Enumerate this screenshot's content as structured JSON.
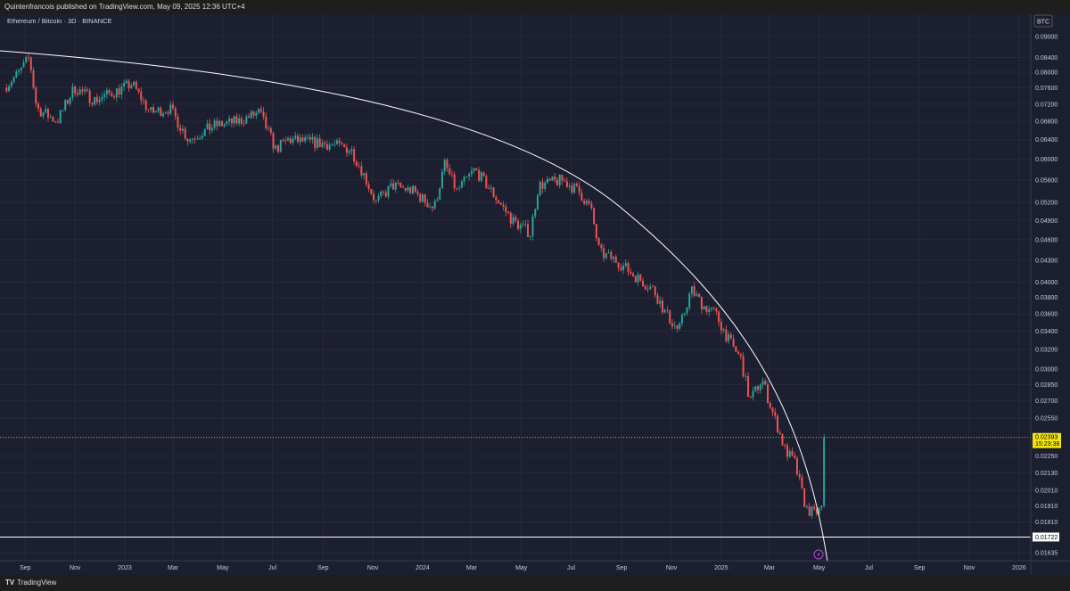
{
  "header": {
    "published": "Quintenfrancois published on TradingView.com, May 09, 2025 12:36 UTC+4"
  },
  "footer": {
    "logo": "TV",
    "brand": "TradingView"
  },
  "chart_data": {
    "type": "candlestick",
    "title": "Ethereum / Bitcoin · 3D · BINANCE",
    "currency": "BTC",
    "scale": "log",
    "grid": true,
    "ylim": [
      0.016,
      0.092
    ],
    "y_ticks": [
      "0.09000",
      "0.08400",
      "0.08000",
      "0.07600",
      "0.07200",
      "0.06800",
      "0.06400",
      "0.06000",
      "0.05600",
      "0.05200",
      "0.04900",
      "0.04600",
      "0.04300",
      "0.04000",
      "0.03800",
      "0.03600",
      "0.03400",
      "0.03200",
      "0.03000",
      "0.02850",
      "0.02700",
      "0.02550",
      "0.02250",
      "0.02130",
      "0.02010",
      "0.01910",
      "0.01810",
      "0.01635"
    ],
    "x_ticks": [
      {
        "label": "Sep",
        "date": "2022-09-01"
      },
      {
        "label": "Nov",
        "date": "2022-11-01"
      },
      {
        "label": "2023",
        "date": "2023-01-01"
      },
      {
        "label": "Mar",
        "date": "2023-03-01"
      },
      {
        "label": "May",
        "date": "2023-05-01"
      },
      {
        "label": "Jul",
        "date": "2023-07-01"
      },
      {
        "label": "Sep",
        "date": "2023-09-01"
      },
      {
        "label": "Nov",
        "date": "2023-11-01"
      },
      {
        "label": "2024",
        "date": "2024-01-01"
      },
      {
        "label": "Mar",
        "date": "2024-03-01"
      },
      {
        "label": "May",
        "date": "2024-05-01"
      },
      {
        "label": "Jul",
        "date": "2024-07-01"
      },
      {
        "label": "Sep",
        "date": "2024-09-01"
      },
      {
        "label": "Nov",
        "date": "2024-11-01"
      },
      {
        "label": "2025",
        "date": "2025-01-01"
      },
      {
        "label": "Mar",
        "date": "2025-03-01"
      },
      {
        "label": "May",
        "date": "2025-05-01"
      },
      {
        "label": "Jul",
        "date": "2025-07-01"
      },
      {
        "label": "Sep",
        "date": "2025-09-01"
      },
      {
        "label": "Nov",
        "date": "2025-11-01"
      },
      {
        "label": "2026",
        "date": "2026-01-01"
      }
    ],
    "closes": [
      [
        "2022-08-06",
        0.076
      ],
      [
        "2022-08-25",
        0.08
      ],
      [
        "2022-09-06",
        0.084
      ],
      [
        "2022-09-15",
        0.071
      ],
      [
        "2022-10-10",
        0.068
      ],
      [
        "2022-10-31",
        0.076
      ],
      [
        "2022-11-25",
        0.073
      ],
      [
        "2022-12-20",
        0.075
      ],
      [
        "2023-01-10",
        0.077
      ],
      [
        "2023-02-01",
        0.07
      ],
      [
        "2023-02-25",
        0.071
      ],
      [
        "2023-03-20",
        0.064
      ],
      [
        "2023-04-20",
        0.067
      ],
      [
        "2023-05-20",
        0.068
      ],
      [
        "2023-06-15",
        0.07
      ],
      [
        "2023-07-05",
        0.062
      ],
      [
        "2023-07-20",
        0.064
      ],
      [
        "2023-09-10",
        0.063
      ],
      [
        "2023-10-05",
        0.062
      ],
      [
        "2023-10-18",
        0.058
      ],
      [
        "2023-11-05",
        0.052
      ],
      [
        "2023-11-25",
        0.055
      ],
      [
        "2023-12-20",
        0.054
      ],
      [
        "2024-01-15",
        0.051
      ],
      [
        "2024-01-28",
        0.059
      ],
      [
        "2024-02-12",
        0.054
      ],
      [
        "2024-03-05",
        0.058
      ],
      [
        "2024-03-25",
        0.054
      ],
      [
        "2024-04-20",
        0.049
      ],
      [
        "2024-05-12",
        0.047
      ],
      [
        "2024-05-22",
        0.055
      ],
      [
        "2024-06-20",
        0.056
      ],
      [
        "2024-07-10",
        0.054
      ],
      [
        "2024-07-25",
        0.051
      ],
      [
        "2024-08-05",
        0.044
      ],
      [
        "2024-08-25",
        0.043
      ],
      [
        "2024-09-15",
        0.041
      ],
      [
        "2024-10-10",
        0.039
      ],
      [
        "2024-10-25",
        0.036
      ],
      [
        "2024-11-10",
        0.034
      ],
      [
        "2024-11-25",
        0.039
      ],
      [
        "2024-12-10",
        0.037
      ],
      [
        "2024-12-25",
        0.036
      ],
      [
        "2025-01-10",
        0.033
      ],
      [
        "2025-01-25",
        0.031
      ],
      [
        "2025-02-05",
        0.027
      ],
      [
        "2025-02-20",
        0.029
      ],
      [
        "2025-03-05",
        0.026
      ],
      [
        "2025-03-20",
        0.023
      ],
      [
        "2025-04-01",
        0.022
      ],
      [
        "2025-04-15",
        0.0189
      ],
      [
        "2025-04-25",
        0.0186
      ],
      [
        "2025-05-06",
        0.019
      ],
      [
        "2025-05-09",
        0.02393
      ]
    ],
    "last_price": {
      "value": "0.02393",
      "countdown": "15:23:38",
      "color": "#f5e50a"
    },
    "horizontal_line": {
      "value": "0.01722"
    },
    "colors": {
      "up": "#26a69a",
      "down": "#ef5350",
      "background": "#1c1f30",
      "arc": "#ffffff"
    }
  }
}
